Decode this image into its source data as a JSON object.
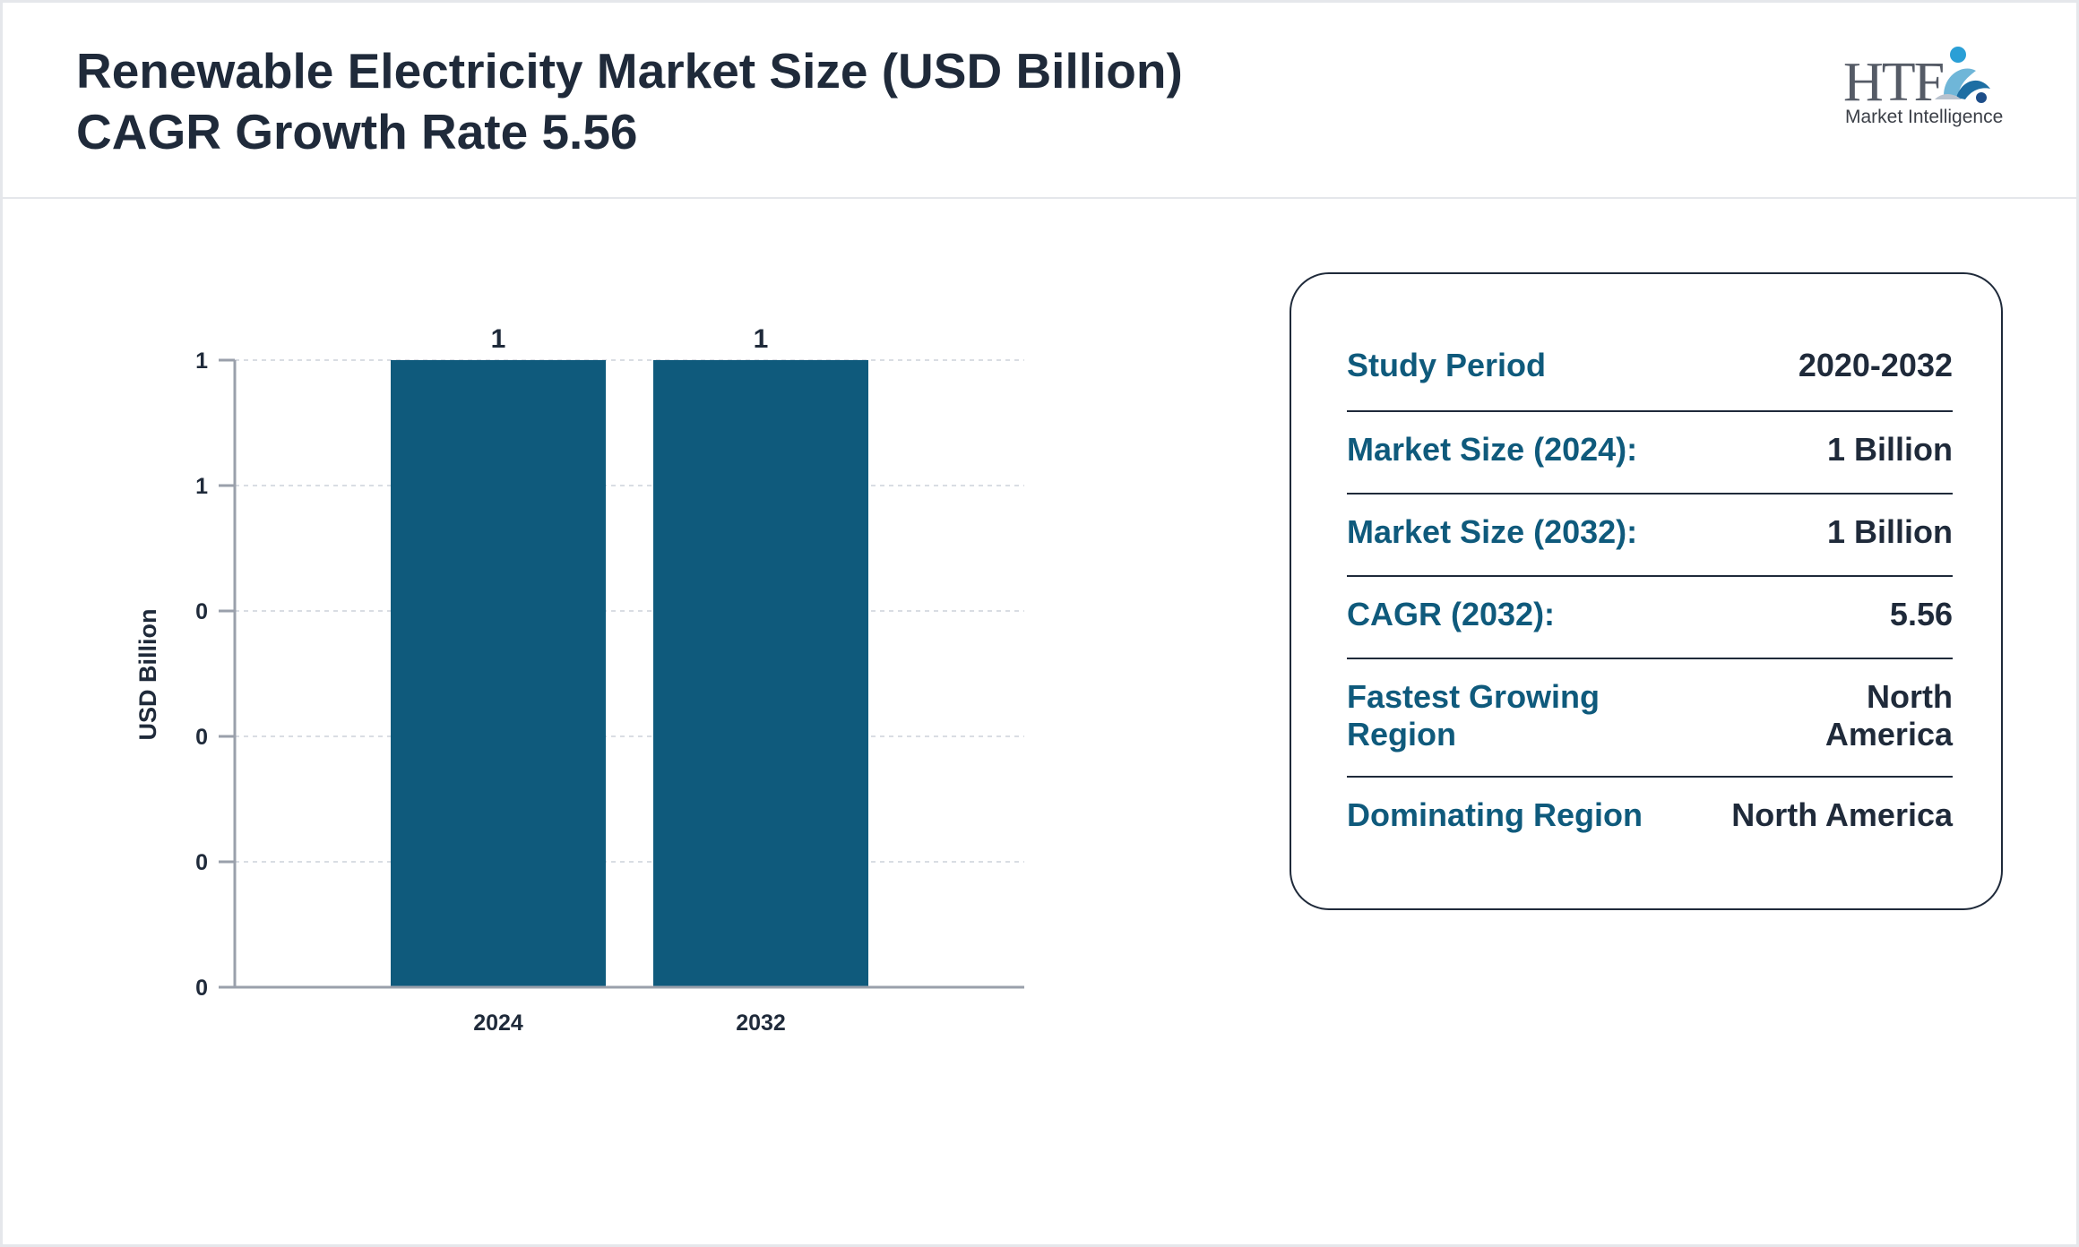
{
  "header": {
    "title_line1": "Renewable Electricity Market Size (USD Billion)",
    "title_line2": "CAGR Growth Rate 5.56"
  },
  "logo": {
    "text": "HTF",
    "subtitle": "Market Intelligence"
  },
  "chart_data": {
    "type": "bar",
    "categories": [
      "2024",
      "2032"
    ],
    "values": [
      1,
      1
    ],
    "data_labels": [
      "1",
      "1"
    ],
    "ylabel": "USD Billion",
    "xlabel": "",
    "ylim": [
      0,
      1
    ],
    "yticks": [
      0,
      0.2,
      0.4,
      0.6,
      0.8,
      1
    ],
    "ytick_labels": [
      "0",
      "0",
      "0",
      "0",
      "1",
      "1"
    ],
    "grid": true,
    "bar_color": "#0f5a7c"
  },
  "info": {
    "rows": [
      {
        "label": "Study Period",
        "value": "2020-2032"
      },
      {
        "label": "Market Size (2024):",
        "value": "1 Billion"
      },
      {
        "label": "Market Size (2032):",
        "value": "1 Billion"
      },
      {
        "label": "CAGR (2032):",
        "value": "5.56"
      },
      {
        "label": "Fastest Growing\nRegion",
        "value": "North\nAmerica"
      },
      {
        "label": "Dominating Region",
        "value": "North America"
      }
    ]
  },
  "colors": {
    "accent": "#0f5a7c",
    "text": "#1f2a3a",
    "axis": "#9aa0ab"
  }
}
